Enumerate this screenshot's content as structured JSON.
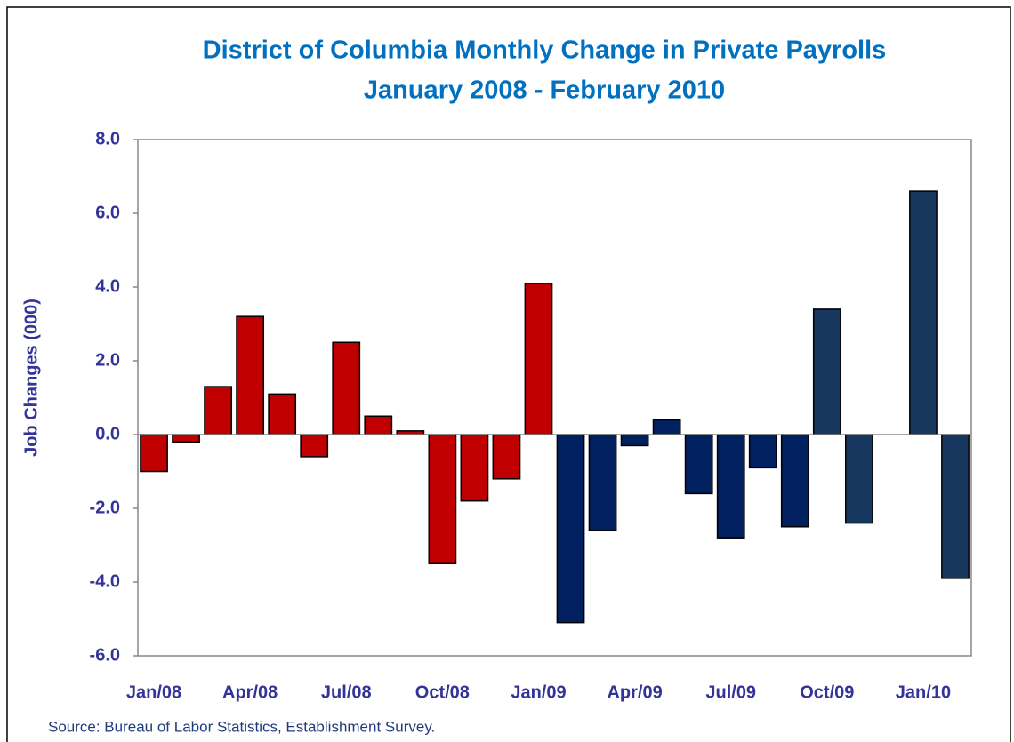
{
  "chart_data": {
    "type": "bar",
    "title": "District of Columbia Monthly Change in Private Payrolls",
    "subtitle": "January 2008 - February 2010",
    "y_label": "Job Changes (000)",
    "source": "Source: Bureau of Labor Statistics, Establishment Survey.",
    "categories": [
      "Jan/08",
      null,
      null,
      "Apr/08",
      null,
      null,
      "Jul/08",
      null,
      null,
      "Oct/08",
      null,
      null,
      "Jan/09",
      null,
      null,
      "Apr/09",
      null,
      null,
      "Jul/09",
      null,
      null,
      "Oct/09",
      null,
      null,
      "Jan/10",
      null
    ],
    "values": [
      -1.0,
      -0.2,
      1.3,
      3.2,
      1.1,
      -0.6,
      2.5,
      0.5,
      0.1,
      -3.5,
      -1.8,
      -1.2,
      4.1,
      -5.1,
      -2.6,
      -0.3,
      0.4,
      -1.6,
      -2.8,
      -0.9,
      -2.5,
      3.4,
      -2.4,
      0,
      6.6,
      -3.9
    ],
    "colors": [
      "#c00000",
      "#c00000",
      "#c00000",
      "#c00000",
      "#c00000",
      "#c00000",
      "#c00000",
      "#c00000",
      "#c00000",
      "#c00000",
      "#c00000",
      "#c00000",
      "#c00000",
      "#002060",
      "#002060",
      "#002060",
      "#002060",
      "#002060",
      "#002060",
      "#002060",
      "#002060",
      "#17375e",
      "#17375e",
      "#17375e",
      "#17375e",
      "#17375e"
    ],
    "ylim": [
      -6,
      8
    ],
    "yticks": [
      {
        "value": -6,
        "label": "-6.0"
      },
      {
        "value": -4,
        "label": "-4.0"
      },
      {
        "value": -2,
        "label": "-2.0"
      },
      {
        "value": 0,
        "label": "0.0"
      },
      {
        "value": 2,
        "label": "2.0"
      },
      {
        "value": 4,
        "label": "4.0"
      },
      {
        "value": 6,
        "label": "6.0"
      },
      {
        "value": 8,
        "label": "8.0"
      }
    ],
    "grid": false
  }
}
